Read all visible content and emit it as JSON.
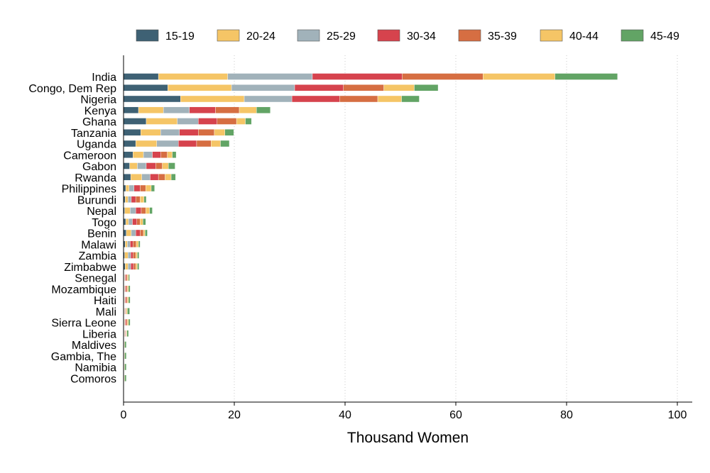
{
  "chart_data": {
    "type": "bar",
    "orientation": "horizontal",
    "stacked": true,
    "title": "",
    "xlabel": "Thousand Women",
    "ylabel": "",
    "xlim": [
      0,
      100
    ],
    "xticks": [
      0,
      20,
      40,
      60,
      80,
      100
    ],
    "grid": "vertical dotted",
    "legend_position": "top",
    "categories": [
      "India",
      "Congo, Dem Rep",
      "Nigeria",
      "Kenya",
      "Ghana",
      "Tanzania",
      "Uganda",
      "Cameroon",
      "Gabon",
      "Rwanda",
      "Philippines",
      "Burundi",
      "Nepal",
      "Togo",
      "Benin",
      "Malawi",
      "Zambia",
      "Zimbabwe",
      "Senegal",
      "Mozambique",
      "Haiti",
      "Mali",
      "Sierra Leone",
      "Liberia",
      "Maldives",
      "Gambia, The",
      "Namibia",
      "Comoros"
    ],
    "series": [
      {
        "name": "15-19",
        "color": "#3e6174",
        "values": [
          6.3,
          8.0,
          10.3,
          2.7,
          4.1,
          3.1,
          2.2,
          1.7,
          1.1,
          1.3,
          0.4,
          0.3,
          0.2,
          0.4,
          0.5,
          0.3,
          0.2,
          0.3,
          0.1,
          0.1,
          0.1,
          0.1,
          0.1,
          0.1,
          0.1,
          0.1,
          0.1,
          0.1
        ]
      },
      {
        "name": "20-24",
        "color": "#f5c566",
        "values": [
          12.5,
          11.5,
          11.5,
          4.5,
          5.6,
          3.6,
          3.8,
          1.9,
          1.4,
          2.0,
          0.6,
          0.5,
          1.0,
          0.5,
          0.9,
          0.4,
          0.6,
          0.5,
          0.1,
          0.1,
          0.1,
          0.1,
          0.1,
          0.1,
          0.0,
          0.0,
          0.0,
          0.0
        ]
      },
      {
        "name": "25-29",
        "color": "#a1b2ba",
        "values": [
          15.3,
          11.4,
          8.6,
          4.7,
          3.8,
          3.4,
          3.9,
          1.6,
          1.6,
          1.5,
          0.9,
          0.6,
          1.0,
          0.7,
          0.8,
          0.5,
          0.5,
          0.5,
          0.1,
          0.1,
          0.1,
          0.1,
          0.1,
          0.1,
          0.0,
          0.0,
          0.0,
          0.0
        ]
      },
      {
        "name": "30-34",
        "color": "#d6434d",
        "values": [
          16.2,
          8.8,
          8.6,
          4.7,
          3.4,
          3.4,
          3.3,
          1.5,
          1.7,
          1.5,
          1.1,
          0.8,
          1.0,
          0.8,
          0.8,
          0.5,
          0.4,
          0.5,
          0.2,
          0.2,
          0.2,
          0.1,
          0.2,
          0.1,
          0.0,
          0.0,
          0.0,
          0.0
        ]
      },
      {
        "name": "35-39",
        "color": "#d66e42",
        "values": [
          14.6,
          7.3,
          6.9,
          4.3,
          3.5,
          2.9,
          2.6,
          1.2,
          1.2,
          1.2,
          1.0,
          0.8,
          0.8,
          0.6,
          0.6,
          0.6,
          0.5,
          0.4,
          0.2,
          0.2,
          0.2,
          0.1,
          0.2,
          0.1,
          0.0,
          0.0,
          0.0,
          0.0
        ]
      },
      {
        "name": "40-44",
        "color": "#f5c566",
        "values": [
          13.0,
          5.5,
          4.3,
          3.1,
          1.6,
          1.9,
          1.7,
          0.9,
          1.1,
          1.1,
          1.0,
          0.7,
          0.7,
          0.5,
          0.3,
          0.4,
          0.3,
          0.3,
          0.2,
          0.2,
          0.2,
          0.2,
          0.2,
          0.1,
          0.1,
          0.1,
          0.1,
          0.1
        ]
      },
      {
        "name": "45-49",
        "color": "#62a465",
        "values": [
          11.3,
          4.3,
          3.2,
          2.5,
          1.1,
          1.6,
          1.6,
          0.7,
          1.2,
          0.8,
          0.6,
          0.4,
          0.5,
          0.5,
          0.4,
          0.3,
          0.3,
          0.3,
          0.2,
          0.3,
          0.3,
          0.4,
          0.3,
          0.3,
          0.3,
          0.3,
          0.3,
          0.3
        ]
      }
    ]
  }
}
